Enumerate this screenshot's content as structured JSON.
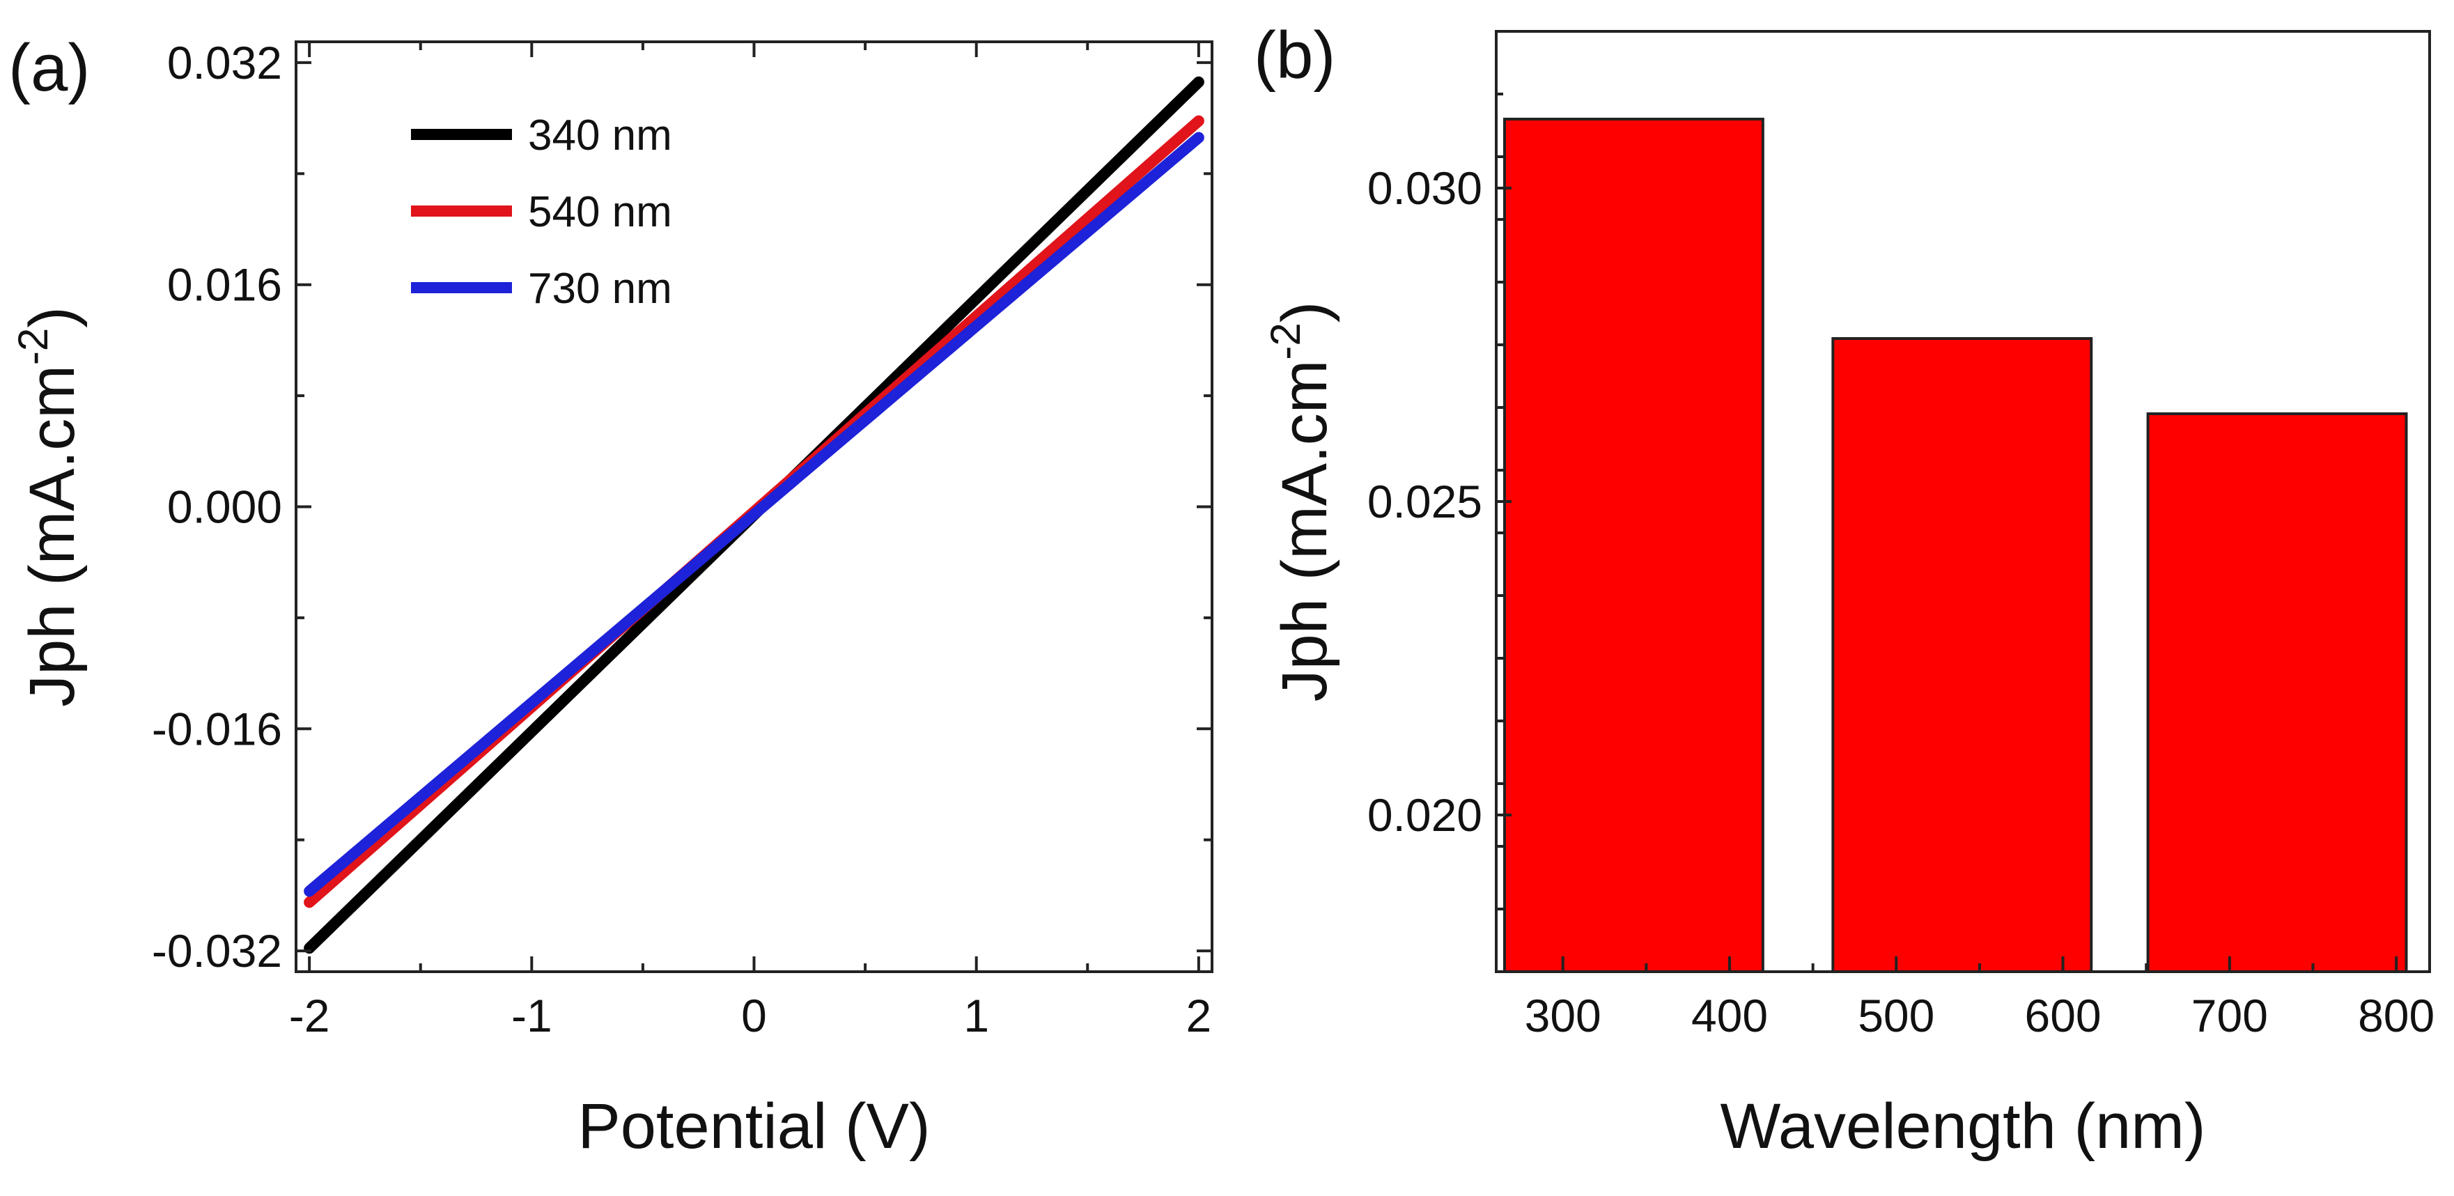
{
  "chart_data": [
    {
      "type": "line",
      "panel_label": "(a)",
      "xlabel": "Potential (V)",
      "ylabel": "Jph (mA.cm",
      "ylabel_sup": "-2",
      "ylabel_close": ")",
      "xlim": [
        -2.06,
        2.06
      ],
      "ylim": [
        -0.0335,
        0.0335
      ],
      "xticks": [
        -2,
        -1,
        0,
        1,
        2
      ],
      "xtick_labels": [
        "-2",
        "-1",
        "0",
        "1",
        "2"
      ],
      "yticks": [
        -0.032,
        -0.016,
        0.0,
        0.016,
        0.032
      ],
      "ytick_labels": [
        "-0.032",
        "-0.016",
        "0.000",
        "0.016",
        "0.032"
      ],
      "grid": false,
      "legend_position": "top-left",
      "series": [
        {
          "name": "340 nm",
          "color": "#000000",
          "x": [
            -2,
            2
          ],
          "y": [
            -0.0318,
            0.0306
          ]
        },
        {
          "name": "540 nm",
          "color": "#e0141a",
          "x": [
            -2,
            2
          ],
          "y": [
            -0.0285,
            0.0278
          ]
        },
        {
          "name": "730 nm",
          "color": "#1e22d8",
          "x": [
            -2,
            2
          ],
          "y": [
            -0.0277,
            0.0266
          ]
        }
      ]
    },
    {
      "type": "bar",
      "panel_label": "(b)",
      "xlabel": "Wavelength (nm)",
      "ylabel": "Jph (mA.cm",
      "ylabel_sup": "-2",
      "ylabel_close": ")",
      "xlim": [
        260,
        820
      ],
      "ylim": [
        0.0175,
        0.0325
      ],
      "xticks": [
        300,
        400,
        500,
        600,
        700,
        800
      ],
      "xtick_labels": [
        "300",
        "400",
        "500",
        "600",
        "700",
        "800"
      ],
      "yticks": [
        0.02,
        0.025,
        0.03
      ],
      "ytick_labels": [
        "0.020",
        "0.025",
        "0.030"
      ],
      "grid": false,
      "bar_color": "#ff0000",
      "bars": [
        {
          "category": "340",
          "x_start": 265,
          "x_end": 420,
          "value": 0.0311
        },
        {
          "category": "540",
          "x_start": 462,
          "x_end": 617,
          "value": 0.0276
        },
        {
          "category": "730",
          "x_start": 651,
          "x_end": 806,
          "value": 0.0264
        }
      ]
    }
  ]
}
